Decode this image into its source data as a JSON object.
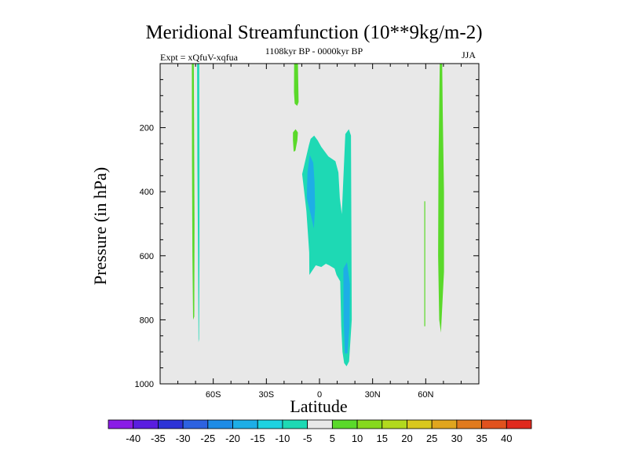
{
  "chart_data": {
    "type": "contour",
    "title": "Meridional Streamfunction (10**9kg/m-2)",
    "left_subtitle": "Expt = xQfuV-xqfua",
    "center_subtitle": "1108kyr BP - 0000kyr BP",
    "right_subtitle": "JJA",
    "xlabel": "Latitude",
    "ylabel": "Pressure (in hPa)",
    "xlim": [
      -90,
      90
    ],
    "ylim": [
      1000,
      0
    ],
    "x_ticks": [
      {
        "value": -60,
        "label": "60S"
      },
      {
        "value": -30,
        "label": "30S"
      },
      {
        "value": 0,
        "label": "0"
      },
      {
        "value": 30,
        "label": "30N"
      },
      {
        "value": 60,
        "label": "60N"
      }
    ],
    "y_ticks": [
      {
        "value": 200,
        "label": "200"
      },
      {
        "value": 400,
        "label": "400"
      },
      {
        "value": 600,
        "label": "600"
      },
      {
        "value": 800,
        "label": "800"
      },
      {
        "value": 1000,
        "label": "1000"
      }
    ],
    "background_color": "#e8e8e8",
    "colorbar": {
      "levels": [
        "-40",
        "-35",
        "-30",
        "-25",
        "-20",
        "-15",
        "-10",
        "-5",
        "5",
        "10",
        "15",
        "20",
        "25",
        "30",
        "35",
        "40"
      ],
      "colors": [
        "#8a1ce6",
        "#5a1ee0",
        "#2d33d6",
        "#2d62e0",
        "#1e8ce6",
        "#1eaee6",
        "#1ed2e0",
        "#1ed9b4",
        "#e8e8e8",
        "#5ad92a",
        "#86d91e",
        "#b2d91e",
        "#d9c81e",
        "#e0a51e",
        "#e07a1e",
        "#e0521e",
        "#e02a1e"
      ]
    },
    "regions": [
      {
        "label": "positive 5-10",
        "color": "#5ad92a",
        "points": [
          [
            -72.1,
            0
          ],
          [
            -71.0,
            0
          ],
          [
            -70.8,
            220
          ],
          [
            -70.6,
            500
          ],
          [
            -70.7,
            790
          ],
          [
            -71.4,
            800
          ],
          [
            -71.8,
            600
          ],
          [
            -72.0,
            300
          ]
        ]
      },
      {
        "label": "negative -10 to -5",
        "color": "#1ed9b4",
        "points": [
          [
            -69.1,
            0
          ],
          [
            -67.9,
            0
          ],
          [
            -67.8,
            300
          ],
          [
            -67.8,
            600
          ],
          [
            -68.0,
            860
          ],
          [
            -68.3,
            870
          ],
          [
            -68.6,
            600
          ],
          [
            -69.0,
            300
          ]
        ]
      },
      {
        "label": "positive 5-10",
        "color": "#5ad92a",
        "points": [
          [
            -14.3,
            0
          ],
          [
            -12.2,
            0
          ],
          [
            -11.8,
            120
          ],
          [
            -12.6,
            132
          ],
          [
            -14.0,
            125
          ],
          [
            -14.4,
            90
          ]
        ]
      },
      {
        "label": "positive 5-10",
        "color": "#5ad92a",
        "points": [
          [
            -15.0,
            215
          ],
          [
            -13.5,
            205
          ],
          [
            -12.2,
            215
          ],
          [
            -12.5,
            240
          ],
          [
            -13.6,
            272
          ],
          [
            -14.6,
            275
          ],
          [
            -15.0,
            240
          ]
        ]
      },
      {
        "label": "negative -10 to -5",
        "color": "#1ed9b4",
        "points": [
          [
            -5.0,
            235
          ],
          [
            -3.0,
            225
          ],
          [
            -1.0,
            240
          ],
          [
            1.0,
            260
          ],
          [
            5.0,
            290
          ],
          [
            9.0,
            305
          ],
          [
            10.7,
            340
          ],
          [
            11.5,
            420
          ],
          [
            12.6,
            470
          ],
          [
            14.6,
            220
          ],
          [
            16.6,
            205
          ],
          [
            17.8,
            225
          ],
          [
            18.0,
            500
          ],
          [
            18.2,
            800
          ],
          [
            16.7,
            930
          ],
          [
            15.3,
            945
          ],
          [
            13.9,
            935
          ],
          [
            13.0,
            900
          ],
          [
            12.3,
            820
          ],
          [
            11.7,
            680
          ],
          [
            9.6,
            660
          ],
          [
            8.5,
            640
          ],
          [
            5.5,
            630
          ],
          [
            3.6,
            625
          ],
          [
            1.0,
            635
          ],
          [
            -2.1,
            630
          ],
          [
            -5.7,
            660
          ],
          [
            -5.8,
            590
          ],
          [
            -7.4,
            460
          ],
          [
            -9.8,
            345
          ],
          [
            -6.0,
            255
          ]
        ]
      },
      {
        "label": "negative -15 to -10",
        "color": "#1eaee6",
        "points": [
          [
            -5.5,
            285
          ],
          [
            -3.5,
            310
          ],
          [
            -2.8,
            370
          ],
          [
            -2.5,
            450
          ],
          [
            -3.2,
            515
          ],
          [
            -4.8,
            475
          ],
          [
            -7.2,
            420
          ],
          [
            -6.8,
            340
          ]
        ]
      },
      {
        "label": "negative -15 to -10",
        "color": "#1eaee6",
        "points": [
          [
            13.5,
            640
          ],
          [
            15.5,
            620
          ],
          [
            17.2,
            690
          ],
          [
            17.0,
            820
          ],
          [
            15.8,
            905
          ],
          [
            14.3,
            905
          ],
          [
            13.6,
            800
          ]
        ]
      },
      {
        "label": "positive 5-10",
        "color": "#5ad92a",
        "points": [
          [
            59.2,
            430
          ],
          [
            59.7,
            430
          ],
          [
            59.7,
            820
          ],
          [
            59.2,
            820
          ]
        ]
      },
      {
        "label": "positive 5-10",
        "color": "#5ad92a",
        "points": [
          [
            67.9,
            0
          ],
          [
            69.3,
            0
          ],
          [
            69.6,
            150
          ],
          [
            70.3,
            400
          ],
          [
            70.3,
            650
          ],
          [
            68.6,
            840
          ],
          [
            67.6,
            800
          ],
          [
            67.0,
            600
          ],
          [
            67.2,
            300
          ]
        ]
      }
    ]
  }
}
